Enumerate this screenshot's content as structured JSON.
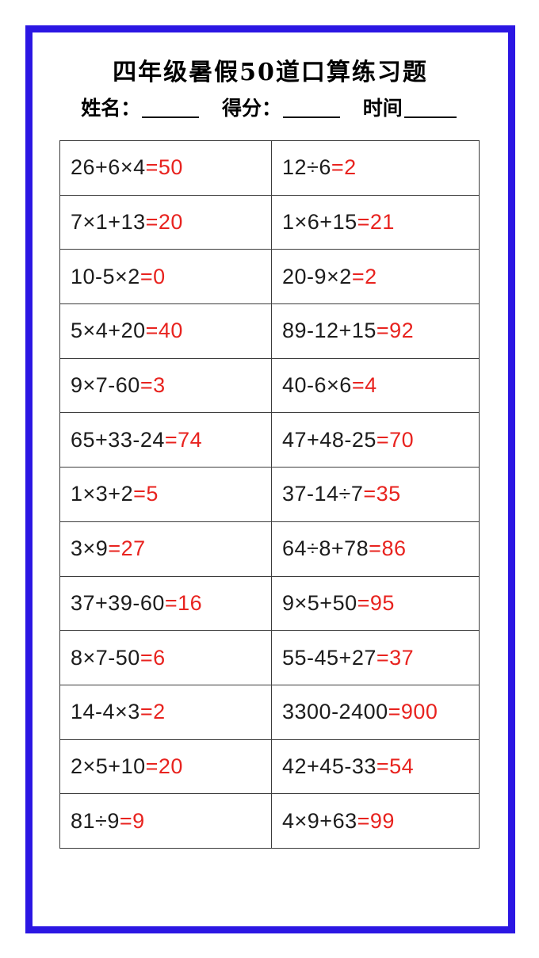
{
  "header": {
    "title": "四年级暑假50道口算练习题",
    "name_label": "姓名：",
    "score_label": "得分：",
    "time_label": "时间"
  },
  "colors": {
    "frame_blue": "#2b16e3",
    "answer_red": "#e8231f",
    "problem_black": "#1c1c1c",
    "grid_gray": "#3c3c3c"
  },
  "problems": {
    "rows": [
      [
        {
          "expression": "26+6×4",
          "answer": "=50"
        },
        {
          "expression": "12÷6",
          "answer": "=2"
        }
      ],
      [
        {
          "expression": "7×1+13",
          "answer": "=20"
        },
        {
          "expression": "1×6+15",
          "answer": "=21"
        }
      ],
      [
        {
          "expression": "10-5×2",
          "answer": "=0"
        },
        {
          "expression": "20-9×2",
          "answer": "=2"
        }
      ],
      [
        {
          "expression": "5×4+20",
          "answer": "=40"
        },
        {
          "expression": "89-12+15",
          "answer": "=92"
        }
      ],
      [
        {
          "expression": "9×7-60",
          "answer": "=3"
        },
        {
          "expression": "40-6×6",
          "answer": "=4"
        }
      ],
      [
        {
          "expression": "65+33-24",
          "answer": "=74"
        },
        {
          "expression": "47+48-25",
          "answer": "=70"
        }
      ],
      [
        {
          "expression": "1×3+2",
          "answer": "=5"
        },
        {
          "expression": "37-14÷7",
          "answer": "=35"
        }
      ],
      [
        {
          "expression": "3×9",
          "answer": "=27"
        },
        {
          "expression": "64÷8+78",
          "answer": "=86"
        }
      ],
      [
        {
          "expression": "37+39-60",
          "answer": "=16"
        },
        {
          "expression": "9×5+50",
          "answer": "=95"
        }
      ],
      [
        {
          "expression": "8×7-50",
          "answer": "=6"
        },
        {
          "expression": "55-45+27",
          "answer": "=37"
        }
      ],
      [
        {
          "expression": "14-4×3",
          "answer": "=2"
        },
        {
          "expression": "3300-2400",
          "answer": "=900"
        }
      ],
      [
        {
          "expression": "2×5+10",
          "answer": "=20"
        },
        {
          "expression": "42+45-33",
          "answer": "=54"
        }
      ],
      [
        {
          "expression": "81÷9",
          "answer": "=9"
        },
        {
          "expression": "4×9+63",
          "answer": "=99"
        }
      ]
    ]
  }
}
